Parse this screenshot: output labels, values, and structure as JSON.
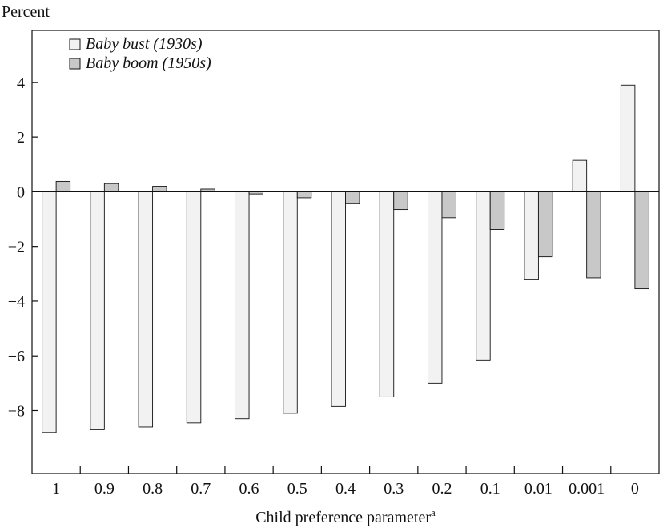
{
  "chart_data": {
    "type": "bar",
    "ylabel": "Percent",
    "xlabel": "Child preference parameter",
    "xlabel_superscript": "a",
    "ylim": [
      -10.3,
      5.9
    ],
    "yticks": [
      -8,
      -6,
      -4,
      -2,
      0,
      2,
      4
    ],
    "ytick_labels": [
      "−8",
      "−6",
      "−4",
      "−2",
      "0",
      "2",
      "4"
    ],
    "categories": [
      "1",
      "0.9",
      "0.8",
      "0.7",
      "0.6",
      "0.5",
      "0.4",
      "0.3",
      "0.2",
      "0.1",
      "0.01",
      "0.001",
      "0"
    ],
    "series": [
      {
        "name": "Baby bust (1930s)",
        "color": "#f2f2f2",
        "values": [
          -8.8,
          -8.7,
          -8.6,
          -8.45,
          -8.3,
          -8.1,
          -7.85,
          -7.5,
          -7.0,
          -6.15,
          -3.2,
          1.15,
          3.9
        ]
      },
      {
        "name": "Baby boom (1950s)",
        "color": "#c8c8c8",
        "values": [
          0.38,
          0.3,
          0.2,
          0.1,
          -0.08,
          -0.22,
          -0.42,
          -0.65,
          -0.95,
          -1.38,
          -2.38,
          -3.15,
          -3.55
        ]
      }
    ],
    "grid": false,
    "legend_position": "top-left"
  }
}
